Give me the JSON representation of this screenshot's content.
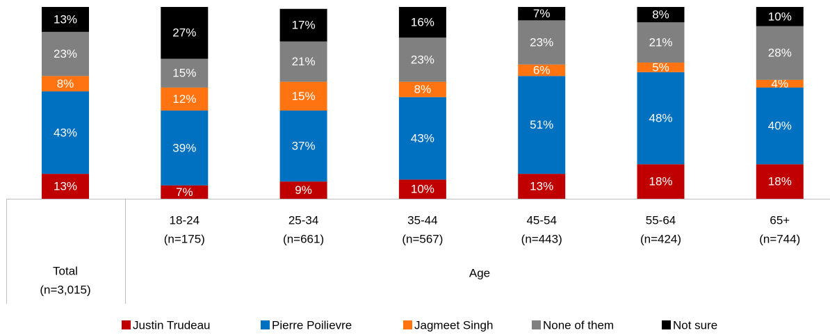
{
  "chart_data": {
    "type": "stacked_bar",
    "categories": [
      "Total",
      "18-24",
      "25-34",
      "35-44",
      "45-54",
      "55-64",
      "65+"
    ],
    "sample_sizes": [
      "(n=3,015)",
      "(n=175)",
      "(n=661)",
      "(n=567)",
      "(n=443)",
      "(n=424)",
      "(n=744)"
    ],
    "group_label": "Age",
    "ylim": [
      0,
      100
    ],
    "series": [
      {
        "name": "Justin Trudeau",
        "color": "#c00000",
        "values": [
          13,
          7,
          9,
          10,
          13,
          18,
          18
        ],
        "value_labels": [
          "13%",
          "7%",
          "9%",
          "10%",
          "13%",
          "18%",
          "18%"
        ]
      },
      {
        "name": "Pierre Poilievre",
        "color": "#0070c0",
        "values": [
          43,
          39,
          37,
          43,
          51,
          48,
          40
        ],
        "value_labels": [
          "43%",
          "39%",
          "37%",
          "43%",
          "51%",
          "48%",
          "40%"
        ]
      },
      {
        "name": "Jagmeet Singh",
        "color": "#ff7410",
        "values": [
          8,
          12,
          15,
          8,
          6,
          5,
          4
        ],
        "value_labels": [
          "8%",
          "12%",
          "15%",
          "8%",
          "6%",
          "5%",
          "4%"
        ]
      },
      {
        "name": "None of them",
        "color": "#808080",
        "values": [
          23,
          15,
          21,
          23,
          23,
          21,
          28
        ],
        "value_labels": [
          "23%",
          "15%",
          "21%",
          "23%",
          "23%",
          "21%",
          "28%"
        ]
      },
      {
        "name": "Not sure",
        "color": "#000000",
        "values": [
          13,
          27,
          17,
          16,
          7,
          8,
          10
        ],
        "value_labels": [
          "13%",
          "27%",
          "17%",
          "16%",
          "7%",
          "8%",
          "10%"
        ]
      }
    ],
    "legend": "bottom"
  }
}
